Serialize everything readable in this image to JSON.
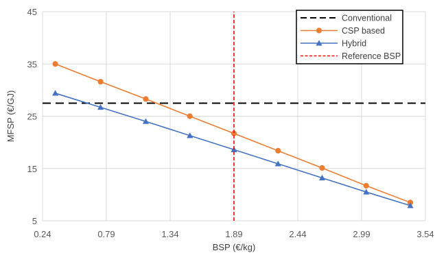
{
  "chart_data": {
    "type": "line",
    "xlabel": "BSP (€/kg)",
    "ylabel": "MFSP (€/GJ)",
    "xlim": [
      0.24,
      3.54
    ],
    "ylim": [
      5,
      45
    ],
    "x_ticks": [
      "0.24",
      "0.79",
      "1.34",
      "1.89",
      "2.44",
      "2.99",
      "3.54"
    ],
    "y_ticks": [
      "5",
      "15",
      "25",
      "35",
      "45"
    ],
    "grid": true,
    "legend_position": "top-right",
    "series": [
      {
        "name": "Conventional",
        "style": "dashed",
        "color": "#000000",
        "marker": "none",
        "x": [
          0.24,
          3.54
        ],
        "y": [
          27.5,
          27.5
        ]
      },
      {
        "name": "CSP based",
        "style": "solid",
        "color": "#ed7d31",
        "marker": "circle",
        "x": [
          0.35,
          0.74,
          1.13,
          1.51,
          1.89,
          2.27,
          2.65,
          3.03,
          3.41
        ],
        "y": [
          35.0,
          31.6,
          28.3,
          25.0,
          21.7,
          18.4,
          15.1,
          11.7,
          8.5
        ]
      },
      {
        "name": "Hybrid",
        "style": "solid",
        "color": "#4472c4",
        "marker": "triangle",
        "x": [
          0.35,
          0.74,
          1.13,
          1.51,
          1.89,
          2.27,
          2.65,
          3.03,
          3.41
        ],
        "y": [
          29.4,
          26.7,
          24.0,
          21.3,
          18.6,
          15.9,
          13.2,
          10.5,
          7.9
        ]
      },
      {
        "name": "Reference BSP",
        "style": "dotted",
        "color": "#ff0000",
        "marker": "none",
        "x": [
          1.89,
          1.89
        ],
        "y": [
          5,
          45
        ]
      }
    ]
  }
}
